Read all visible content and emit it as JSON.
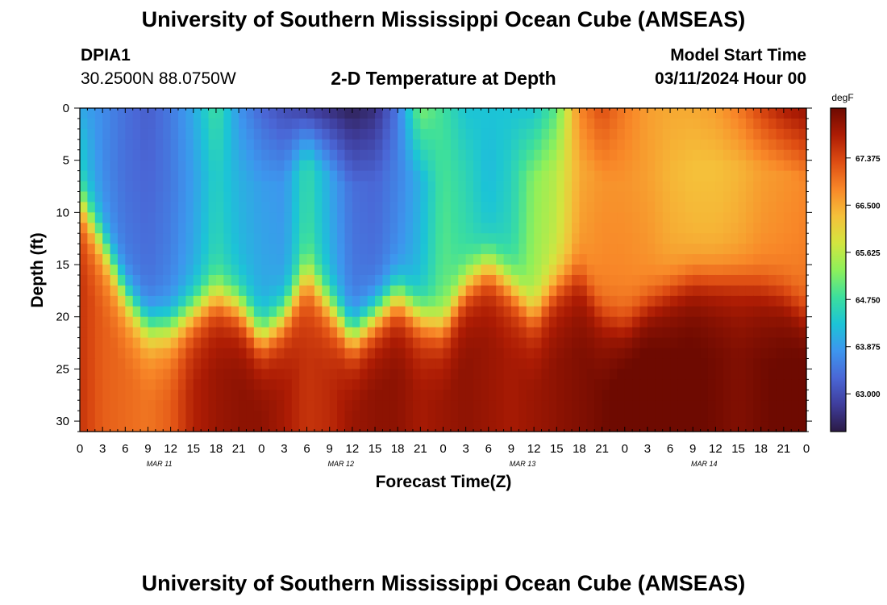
{
  "page": {
    "title": "University of Southern Mississippi Ocean Cube (AMSEAS)",
    "footer_title": "University of Southern Mississippi Ocean Cube (AMSEAS)",
    "station_id": "DPIA1",
    "coordinates": "30.2500N  88.0750W",
    "subtitle": "2-D Temperature at Depth",
    "model_start_label": "Model Start Time",
    "model_start_value": "03/11/2024 Hour 00"
  },
  "chart_data": {
    "type": "heatmap",
    "title": "2-D Temperature at Depth",
    "xlabel": "Forecast Time(Z)",
    "ylabel": "Depth (ft)",
    "x_range_hours": [
      0,
      96
    ],
    "x_tick_step_hours": 3,
    "x_tick_labels": [
      "0",
      "3",
      "6",
      "9",
      "12",
      "15",
      "18",
      "21",
      "0",
      "3",
      "6",
      "9",
      "12",
      "15",
      "18",
      "21",
      "0",
      "3",
      "6",
      "9",
      "12",
      "15",
      "18",
      "21",
      "0",
      "3",
      "6",
      "9",
      "12",
      "15",
      "18",
      "21",
      "0"
    ],
    "date_labels": [
      {
        "label": "MAR 11",
        "hour": 10.5
      },
      {
        "label": "MAR 12",
        "hour": 34.5
      },
      {
        "label": "MAR 13",
        "hour": 58.5
      },
      {
        "label": "MAR 14",
        "hour": 82.5
      }
    ],
    "y_range_ft": [
      0,
      31
    ],
    "y_ticks": [
      0,
      5,
      10,
      15,
      20,
      25,
      30
    ],
    "y_tick_labels": [
      "0",
      "5",
      "10",
      "15",
      "20",
      "25",
      "30"
    ],
    "colorbar": {
      "unit": "degF",
      "min": 62.3,
      "max": 68.3,
      "ticks": [
        63.0,
        63.875,
        64.75,
        65.625,
        66.5,
        67.375
      ],
      "tick_labels": [
        "63.000",
        "63.875",
        "64.750",
        "65.625",
        "66.500",
        "67.375"
      ],
      "colors": [
        "#2b1a45",
        "#3f3d9c",
        "#4a67d6",
        "#3d96ee",
        "#1cc4d6",
        "#3ddf9c",
        "#8ef05a",
        "#d3e53f",
        "#f5c03a",
        "#f88728",
        "#de4d13",
        "#ad1c04",
        "#6e0a01"
      ]
    },
    "thermocline_depth_ft": {
      "hours": [
        0,
        3,
        6,
        9,
        12,
        15,
        18,
        21,
        24,
        27,
        30,
        33,
        36,
        39,
        42,
        45,
        48,
        51,
        54,
        57,
        60,
        63,
        66,
        69,
        72,
        75,
        78,
        81,
        84,
        87,
        90,
        93,
        96
      ],
      "values": [
        9,
        13,
        18,
        21,
        21,
        19.5,
        18,
        19,
        22,
        20,
        16,
        19,
        22,
        20,
        18,
        20,
        21,
        17,
        15,
        17,
        20,
        17,
        16,
        20,
        21,
        19,
        17.5,
        16.5,
        16.5,
        16.5,
        17,
        18,
        20
      ]
    },
    "surface_temperature_degF": {
      "hours": [
        0,
        3,
        6,
        9,
        12,
        15,
        18,
        21,
        24,
        27,
        30,
        33,
        36,
        39,
        42,
        45,
        48,
        51,
        54,
        57,
        60,
        63,
        66,
        69,
        72,
        75,
        78,
        81,
        84,
        87,
        90,
        93,
        96
      ],
      "values": [
        64.0,
        63.7,
        63.4,
        63.2,
        63.5,
        64.0,
        64.8,
        63.8,
        63.3,
        63.0,
        62.8,
        62.6,
        62.4,
        62.6,
        63.5,
        65.2,
        64.8,
        64.3,
        64.3,
        64.3,
        64.3,
        65.0,
        66.8,
        67.3,
        66.9,
        66.6,
        66.5,
        66.5,
        66.6,
        66.9,
        67.4,
        67.8,
        68.0
      ]
    },
    "upper_layer_minimum_degF": {
      "hours": [
        0,
        3,
        6,
        9,
        12,
        15,
        18,
        21,
        24,
        27,
        30,
        33,
        36,
        39,
        42,
        45,
        48,
        51,
        54,
        57,
        60,
        63,
        66,
        69,
        72,
        75,
        78,
        81,
        84,
        87,
        90,
        93,
        96
      ],
      "values": [
        64.2,
        63.6,
        63.3,
        63.2,
        63.4,
        63.8,
        64.4,
        64.0,
        63.8,
        63.7,
        64.6,
        63.9,
        63.3,
        63.2,
        63.5,
        64.0,
        64.8,
        64.5,
        64.1,
        64.4,
        65.2,
        65.5,
        66.4,
        66.6,
        66.6,
        66.5,
        66.3,
        66.2,
        66.2,
        66.3,
        66.5,
        66.6,
        66.7
      ]
    },
    "deep_temperature_degF": {
      "hours": [
        0,
        3,
        6,
        9,
        12,
        15,
        18,
        21,
        24,
        27,
        30,
        33,
        36,
        39,
        42,
        45,
        48,
        51,
        54,
        57,
        60,
        63,
        66,
        69,
        72,
        75,
        78,
        81,
        84,
        87,
        90,
        93,
        96
      ],
      "values": [
        67.4,
        67.0,
        66.9,
        66.8,
        67.0,
        67.6,
        67.8,
        67.9,
        67.9,
        67.7,
        67.4,
        67.5,
        67.8,
        67.9,
        67.9,
        67.7,
        67.8,
        67.9,
        67.8,
        67.7,
        67.8,
        67.9,
        68.0,
        68.1,
        68.3,
        68.3,
        68.2,
        68.2,
        68.1,
        68.0,
        68.1,
        68.2,
        68.3
      ]
    }
  }
}
